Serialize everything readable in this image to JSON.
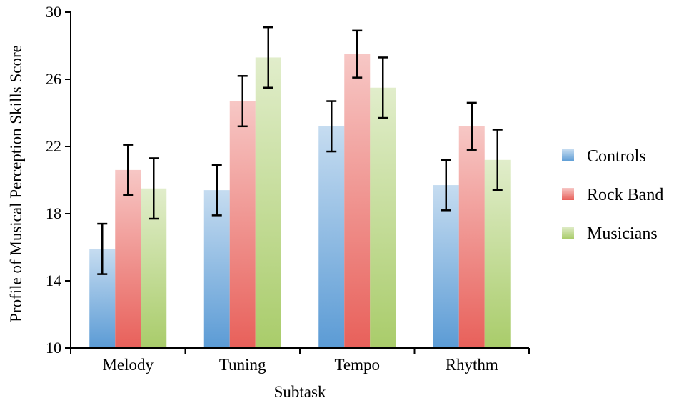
{
  "chart_data": {
    "type": "bar",
    "title": "",
    "xlabel": "Subtask",
    "ylabel": "Profile of Musical Perception Skills Score",
    "ylim": [
      10,
      30
    ],
    "yticks": [
      10,
      14,
      18,
      22,
      26,
      30
    ],
    "categories": [
      "Melody",
      "Tuning",
      "Tempo",
      "Rhythm"
    ],
    "series": [
      {
        "name": "Controls",
        "values": [
          15.9,
          19.4,
          23.2,
          19.7
        ],
        "errors": [
          1.5,
          1.5,
          1.5,
          1.5
        ],
        "color": "#5b9bd5"
      },
      {
        "name": "Rock Band",
        "values": [
          20.6,
          24.7,
          27.5,
          23.2
        ],
        "errors": [
          1.5,
          1.5,
          1.4,
          1.4
        ],
        "color": "#e8605a"
      },
      {
        "name": "Musicians",
        "values": [
          19.5,
          27.3,
          25.5,
          21.2
        ],
        "errors": [
          1.8,
          1.8,
          1.8,
          1.8
        ],
        "color": "#a9cc6a"
      }
    ],
    "legend_position": "right",
    "grid": false
  }
}
